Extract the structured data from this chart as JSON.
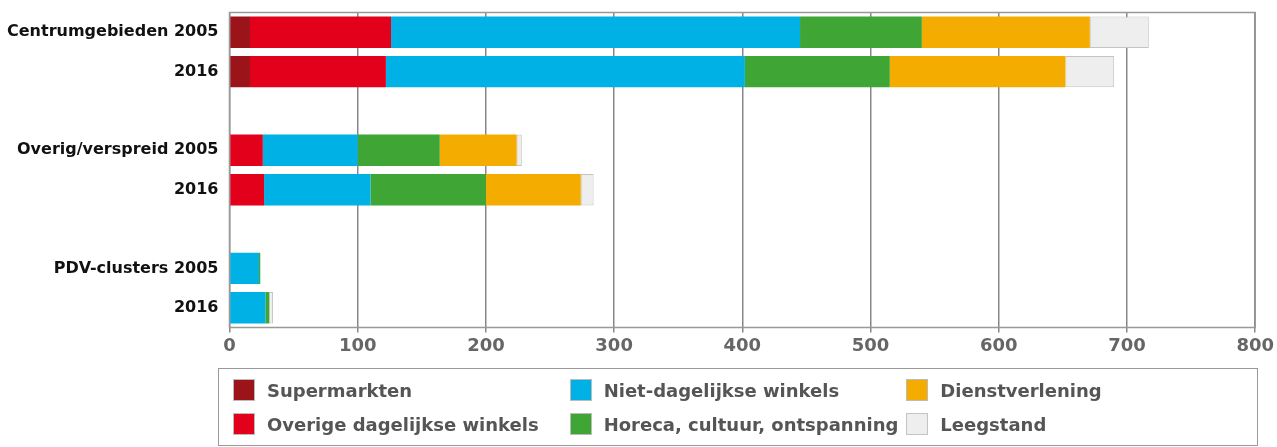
{
  "chart_data": {
    "type": "bar",
    "orientation": "horizontal",
    "stacked": true,
    "categories": [
      "Centrumgebieden 2005",
      "2016",
      null,
      "Overig/verspreid 2005",
      "2016",
      null,
      "PDV-clusters 2005",
      "2016"
    ],
    "series": [
      {
        "name": "Supermarkten",
        "color": "#9b1419",
        "values": [
          16,
          16,
          null,
          0,
          0,
          null,
          0,
          0
        ]
      },
      {
        "name": "Overige dagelijkse winkels",
        "color": "#e2001a",
        "values": [
          110,
          106,
          null,
          26,
          27,
          null,
          0,
          0
        ]
      },
      {
        "name": "Niet-dagelijkse winkels",
        "color": "#00b1e6",
        "values": [
          319,
          280,
          null,
          74,
          83,
          null,
          23,
          28
        ]
      },
      {
        "name": "Horeca, cultuur, ontspanning",
        "color": "#3fa535",
        "values": [
          95,
          113,
          null,
          64,
          90,
          null,
          1,
          3
        ]
      },
      {
        "name": "Dienstverlening",
        "color": "#f5ac00",
        "values": [
          131,
          137,
          null,
          60,
          74,
          null,
          0,
          0
        ]
      },
      {
        "name": "Leegstand",
        "color": "#eeeeee",
        "values": [
          46,
          38,
          null,
          4,
          10,
          null,
          0,
          3
        ]
      }
    ],
    "xlim": [
      0,
      800
    ],
    "xticks": [
      0,
      100,
      200,
      300,
      400,
      500,
      600,
      700,
      800
    ],
    "grid": "x",
    "legend": "bottom"
  }
}
